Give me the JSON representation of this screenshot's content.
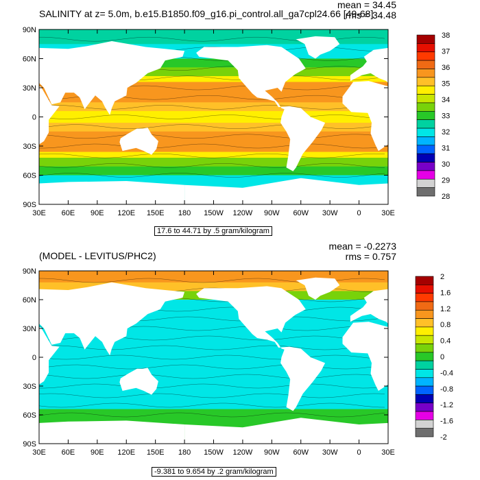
{
  "panels": [
    {
      "title": "SALINITY at z=   5.0m, b.e15.B1850.f09_g16.pi_control.all_ga7cpl24.66 [49-68]",
      "mean": "mean = 34.45",
      "rms": "rms = 34.48",
      "footer": "17.6 to 44.71 by .5 gram/kilogram",
      "lat_labels": [
        "90N",
        "60N",
        "30N",
        "0",
        "30S",
        "60S",
        "90S"
      ],
      "lon_labels": [
        "30E",
        "60E",
        "90E",
        "120E",
        "150E",
        "180",
        "150W",
        "120W",
        "90W",
        "60W",
        "30W",
        "0",
        "30E"
      ],
      "colorbar": {
        "labels": [
          "38",
          "37",
          "36",
          "35",
          "34",
          "33",
          "32",
          "31",
          "30",
          "29",
          "28"
        ],
        "colors": [
          "#a50000",
          "#e60f00",
          "#ff3a00",
          "#f06a14",
          "#f8961e",
          "#ffc028",
          "#ffef00",
          "#c8e600",
          "#78d20a",
          "#28c828",
          "#00d2a0",
          "#00e6e6",
          "#00b4ff",
          "#0064ff",
          "#0000b4",
          "#7800c8",
          "#e600e6",
          "#d2d2d2",
          "#6e6e6e"
        ]
      }
    },
    {
      "title": "(MODEL - LEVITUS/PHC2)",
      "mean": "mean = -0.2273",
      "rms": "rms = 0.757",
      "footer": "-9.381 to 9.654 by .2 gram/kilogram",
      "lat_labels": [
        "90N",
        "60N",
        "30N",
        "0",
        "30S",
        "60S",
        "90S"
      ],
      "lon_labels": [
        "30E",
        "60E",
        "90E",
        "120E",
        "150E",
        "180",
        "150W",
        "120W",
        "90W",
        "60W",
        "30W",
        "0",
        "30E"
      ],
      "colorbar": {
        "labels": [
          "2",
          "1.6",
          "1.2",
          "0.8",
          "0.4",
          "0",
          "-0.4",
          "-0.8",
          "-1.2",
          "-1.6",
          "-2"
        ],
        "colors": [
          "#a50000",
          "#e60f00",
          "#ff3a00",
          "#f06a14",
          "#f8961e",
          "#ffc028",
          "#ffef00",
          "#c8e600",
          "#78d20a",
          "#28c828",
          "#00d2a0",
          "#00e6e6",
          "#00b4ff",
          "#0064ff",
          "#0000b4",
          "#7800c8",
          "#e600e6",
          "#d2d2d2",
          "#6e6e6e"
        ]
      }
    }
  ]
}
